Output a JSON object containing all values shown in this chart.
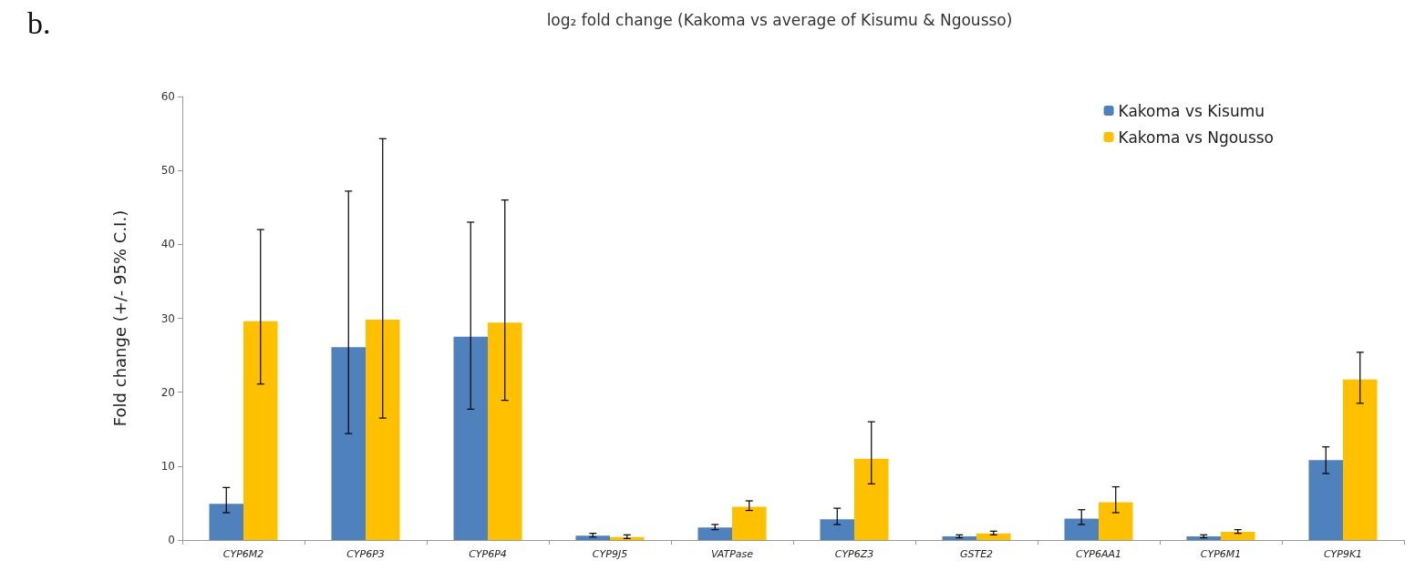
{
  "chart_data": {
    "type": "bar",
    "title": "log₂ fold change (Kakoma vs average of Kisumu & Ngousso)",
    "ylabel": "Fold change (+/- 95% C.I.)",
    "annotations": [
      "b."
    ],
    "categories": [
      "CYP6M2",
      "CYP6P3",
      "CYP6P4",
      "CYP9J5",
      "VATPase",
      "CYP6Z3",
      "GSTE2",
      "CYP6AA1",
      "CYP6M1",
      "CYP9K1"
    ],
    "series": [
      {
        "name": "Kakoma vs Kisumu",
        "color": "#4f81bd",
        "values": [
          4.9,
          26.1,
          27.5,
          0.6,
          1.7,
          2.8,
          0.5,
          2.9,
          0.5,
          10.8
        ],
        "errors": [
          [
            3.7,
            7.1
          ],
          [
            14.4,
            47.2
          ],
          [
            17.7,
            43.0
          ],
          [
            0.4,
            0.9
          ],
          [
            1.4,
            2.1
          ],
          [
            2.1,
            4.3
          ],
          [
            0.3,
            0.7
          ],
          [
            2.1,
            4.1
          ],
          [
            0.3,
            0.7
          ],
          [
            9.0,
            12.6
          ]
        ]
      },
      {
        "name": "Kakoma vs Ngousso",
        "color": "#ffc000",
        "values": [
          29.6,
          29.8,
          29.4,
          0.4,
          4.5,
          11.0,
          0.9,
          5.1,
          1.1,
          21.7
        ],
        "errors": [
          [
            21.1,
            42.0
          ],
          [
            16.5,
            54.3
          ],
          [
            18.9,
            46.0
          ],
          [
            0.2,
            0.7
          ],
          [
            4.0,
            5.3
          ],
          [
            7.6,
            16.0
          ],
          [
            0.7,
            1.2
          ],
          [
            3.7,
            7.2
          ],
          [
            0.9,
            1.4
          ],
          [
            18.5,
            25.4
          ]
        ]
      }
    ],
    "ylim": [
      0,
      60
    ],
    "yticks": [
      0,
      10,
      20,
      30,
      40,
      50,
      60
    ],
    "grid": false,
    "legend": "top right"
  }
}
